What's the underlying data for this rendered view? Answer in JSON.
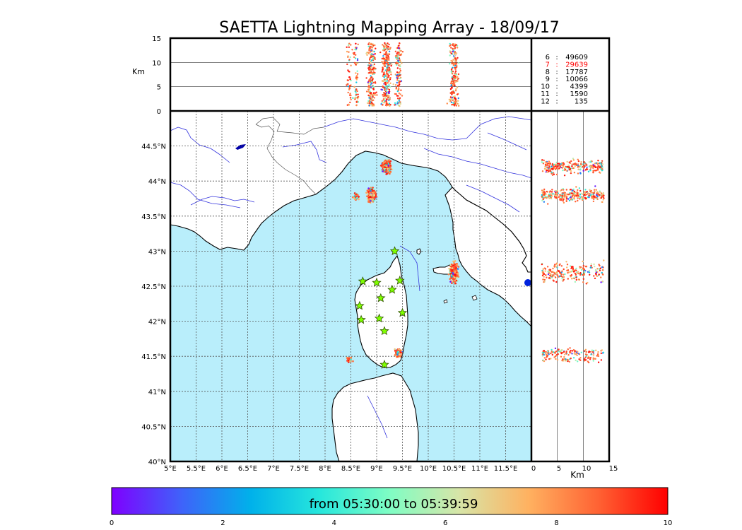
{
  "chart_data": {
    "type": "scatter",
    "title": "SAETTA Lightning Mapping Array - 18/09/17",
    "colors": {
      "sea": "#b9eefb",
      "coast": "#000000",
      "river": "#3333dd",
      "border": "#555555",
      "grid": "#555555",
      "station_fill": "#7fff00",
      "station_stroke": "#2f4f00",
      "count_highlight": "#ff0000"
    },
    "top_panel": {
      "ylabel": "Km",
      "ylim": [
        0,
        15
      ],
      "yticks": [
        "0",
        "5",
        "10",
        "15"
      ],
      "reference_lines_km": [
        5,
        10
      ]
    },
    "map_panel": {
      "lon_range": [
        5,
        12
      ],
      "lat_range": [
        40,
        45
      ],
      "xticks": [
        "5°E",
        "5.5°E",
        "6°E",
        "6.5°E",
        "7°E",
        "7.5°E",
        "8°E",
        "8.5°E",
        "9°E",
        "9.5°E",
        "10°E",
        "10.5°E",
        "11°E",
        "11.5°E"
      ],
      "yticks": [
        "40°N",
        "40.5°N",
        "41°N",
        "41.5°N",
        "42°N",
        "42.5°N",
        "43°N",
        "43.5°N",
        "44°N",
        "44.5°N"
      ],
      "stations": [
        {
          "lon": 9.35,
          "lat": 43.0
        },
        {
          "lon": 8.73,
          "lat": 42.57
        },
        {
          "lon": 9.0,
          "lat": 42.55
        },
        {
          "lon": 9.45,
          "lat": 42.58
        },
        {
          "lon": 9.3,
          "lat": 42.45
        },
        {
          "lon": 9.08,
          "lat": 42.33
        },
        {
          "lon": 8.67,
          "lat": 42.22
        },
        {
          "lon": 9.5,
          "lat": 42.12
        },
        {
          "lon": 8.7,
          "lat": 42.02
        },
        {
          "lon": 9.05,
          "lat": 42.04
        },
        {
          "lon": 9.15,
          "lat": 41.86
        },
        {
          "lon": 9.15,
          "lat": 41.38
        }
      ],
      "clusters": [
        {
          "lon": 9.19,
          "lat": 44.2,
          "dlon": 0.12,
          "dlat": 0.13,
          "n": 260
        },
        {
          "lon": 8.9,
          "lat": 43.8,
          "dlon": 0.12,
          "dlat": 0.13,
          "n": 240
        },
        {
          "lon": 8.6,
          "lat": 43.78,
          "dlon": 0.07,
          "dlat": 0.07,
          "n": 60
        },
        {
          "lon": 10.5,
          "lat": 42.7,
          "dlon": 0.12,
          "dlat": 0.2,
          "n": 220
        },
        {
          "lon": 9.42,
          "lat": 41.55,
          "dlon": 0.08,
          "dlat": 0.08,
          "n": 120
        },
        {
          "lon": 8.47,
          "lat": 41.45,
          "dlon": 0.08,
          "dlat": 0.05,
          "n": 50
        }
      ]
    },
    "side_panel": {
      "xlabel": "Km",
      "xlim": [
        0,
        15
      ],
      "xticks": [
        "0",
        "5",
        "10",
        "15"
      ],
      "reference_lines_km": [
        5,
        10
      ]
    },
    "stats": [
      {
        "id": "6",
        "count": "49609",
        "highlight": false
      },
      {
        "id": "7",
        "count": "29639",
        "highlight": true
      },
      {
        "id": "8",
        "count": "17787",
        "highlight": false
      },
      {
        "id": "9",
        "count": "10066",
        "highlight": false
      },
      {
        "id": "10",
        "count": "4399",
        "highlight": false
      },
      {
        "id": "11",
        "count": "1590",
        "highlight": false
      },
      {
        "id": "12",
        "count": "135",
        "highlight": false
      }
    ],
    "colorbar": {
      "label": "from 05:30:00 to 05:39:59",
      "range": [
        0,
        10
      ],
      "ticks": [
        "0",
        "2",
        "4",
        "6",
        "8",
        "10"
      ],
      "gradient": [
        "#7f00ff",
        "#3f62fa",
        "#00b1ea",
        "#27e7dc",
        "#7ffdc4",
        "#d7e5a7",
        "#ffb160",
        "#ff6233",
        "#ff0000"
      ]
    }
  }
}
